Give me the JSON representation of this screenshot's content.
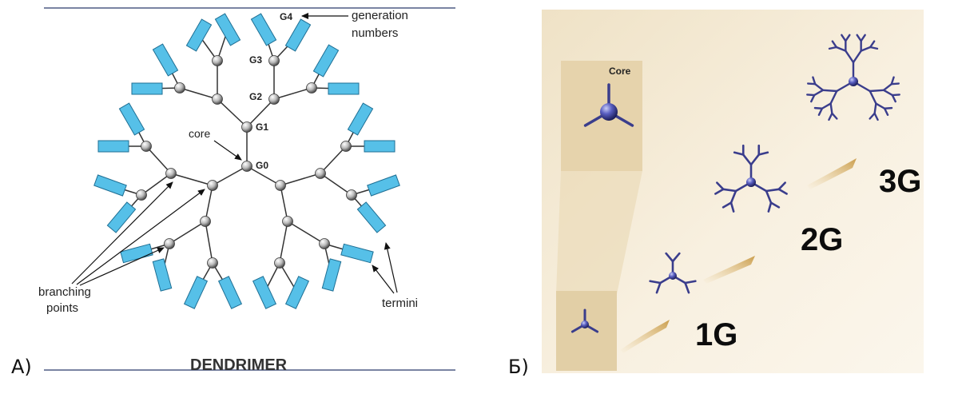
{
  "panel_a": {
    "letter": "A)",
    "title": "DENDRIMER",
    "generation_labels": [
      "G0",
      "G1",
      "G2",
      "G3",
      "G4"
    ],
    "core_label": "core",
    "generation_numbers_line1": "generation",
    "generation_numbers_line2": "numbers",
    "branching_line1": "branching",
    "branching_line2": "points",
    "termini_label": "termini",
    "colors": {
      "terminus": "#56c0e8",
      "terminus_border": "#1f6f94",
      "line": "#333333",
      "rule": "#2a3a6a"
    }
  },
  "panel_b": {
    "letter": "Б)",
    "core_label": "Core",
    "gen_1": "1G",
    "gen_2": "2G",
    "gen_3": "3G",
    "colors": {
      "background": "#f4ead6",
      "molecule": "#3a3d8c",
      "arrow": "#d7b46a"
    }
  }
}
